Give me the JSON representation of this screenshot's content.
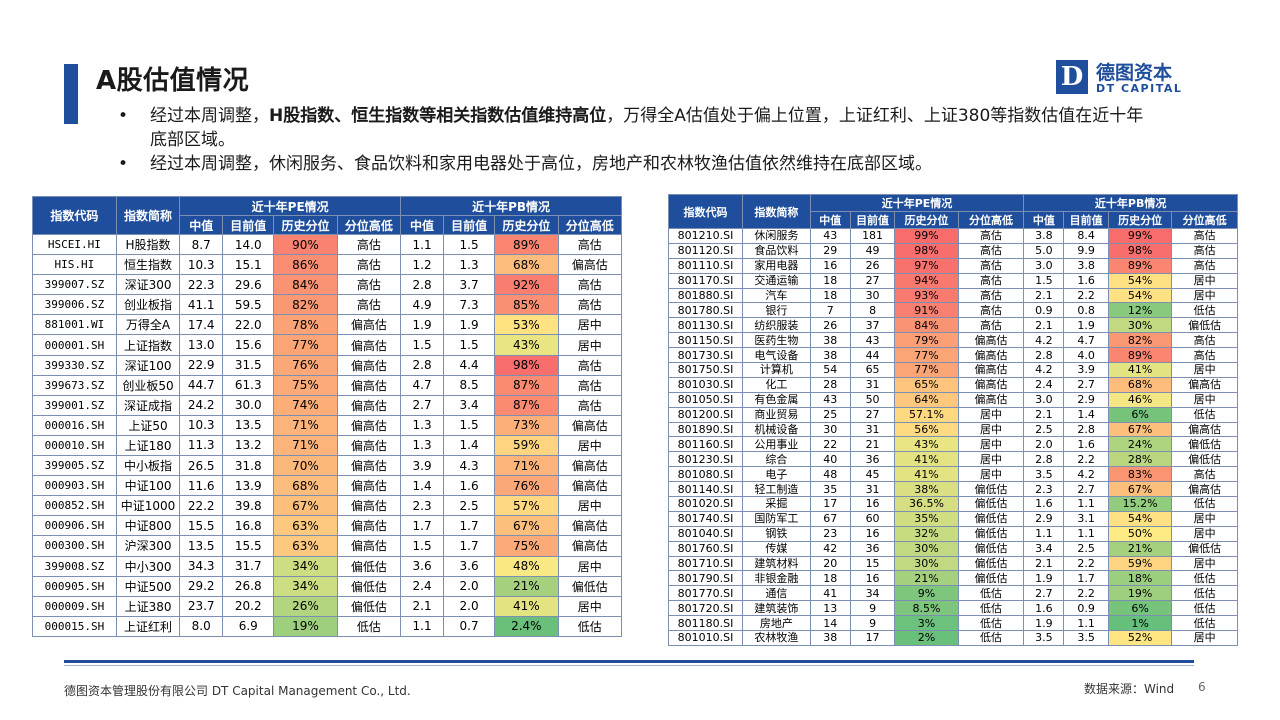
{
  "title": "A股估值情况",
  "logo": {
    "cn": "德图资本",
    "en": "DT CAPITAL",
    "mark": "D"
  },
  "bullets": [
    {
      "pre": "经过本周调整，",
      "bold": "H股指数、恒生指数等相关指数估值维持高位",
      "post": "，万得全A估值处于偏上位置，上证红利、上证380等指数估值在近十年底部区域。"
    },
    {
      "pre": "经过本周调整，休闲服务、食品饮料和家用电器处于高位，房地产和农林牧渔估值依然维持在底部区域。",
      "bold": "",
      "post": ""
    }
  ],
  "table_a": {
    "headers": {
      "code": "指数代码",
      "name": "指数简称",
      "pe_group": "近十年PE情况",
      "pb_group": "近十年PB情况",
      "median": "中值",
      "current": "目前值",
      "pct": "历史分位",
      "level": "分位高低"
    },
    "rows": [
      [
        "HSCEI.HI",
        "H股指数",
        "8.7",
        "14.0",
        "90%",
        "高估",
        "1.1",
        "1.5",
        "89%",
        "高估"
      ],
      [
        "HIS.HI",
        "恒生指数",
        "10.3",
        "15.1",
        "86%",
        "高估",
        "1.2",
        "1.3",
        "68%",
        "偏高估"
      ],
      [
        "399007.SZ",
        "深证300",
        "22.3",
        "29.6",
        "84%",
        "高估",
        "2.8",
        "3.7",
        "92%",
        "高估"
      ],
      [
        "399006.SZ",
        "创业板指",
        "41.1",
        "59.5",
        "82%",
        "高估",
        "4.9",
        "7.3",
        "85%",
        "高估"
      ],
      [
        "881001.WI",
        "万得全A",
        "17.4",
        "22.0",
        "78%",
        "偏高估",
        "1.9",
        "1.9",
        "53%",
        "居中"
      ],
      [
        "000001.SH",
        "上证指数",
        "13.0",
        "15.6",
        "77%",
        "偏高估",
        "1.5",
        "1.5",
        "43%",
        "居中"
      ],
      [
        "399330.SZ",
        "深证100",
        "22.9",
        "31.5",
        "76%",
        "偏高估",
        "2.8",
        "4.4",
        "98%",
        "高估"
      ],
      [
        "399673.SZ",
        "创业板50",
        "44.7",
        "61.3",
        "75%",
        "偏高估",
        "4.7",
        "8.5",
        "87%",
        "高估"
      ],
      [
        "399001.SZ",
        "深证成指",
        "24.2",
        "30.0",
        "74%",
        "偏高估",
        "2.7",
        "3.4",
        "87%",
        "高估"
      ],
      [
        "000016.SH",
        "上证50",
        "10.3",
        "13.5",
        "71%",
        "偏高估",
        "1.3",
        "1.5",
        "73%",
        "偏高估"
      ],
      [
        "000010.SH",
        "上证180",
        "11.3",
        "13.2",
        "71%",
        "偏高估",
        "1.3",
        "1.4",
        "59%",
        "居中"
      ],
      [
        "399005.SZ",
        "中小板指",
        "26.5",
        "31.8",
        "70%",
        "偏高估",
        "3.9",
        "4.3",
        "71%",
        "偏高估"
      ],
      [
        "000903.SH",
        "中证100",
        "11.6",
        "13.9",
        "68%",
        "偏高估",
        "1.4",
        "1.6",
        "76%",
        "偏高估"
      ],
      [
        "000852.SH",
        "中证1000",
        "22.2",
        "39.8",
        "67%",
        "偏高估",
        "2.3",
        "2.5",
        "57%",
        "居中"
      ],
      [
        "000906.SH",
        "中证800",
        "15.5",
        "16.8",
        "63%",
        "偏高估",
        "1.7",
        "1.7",
        "67%",
        "偏高估"
      ],
      [
        "000300.SH",
        "沪深300",
        "13.5",
        "15.5",
        "63%",
        "偏高估",
        "1.5",
        "1.7",
        "75%",
        "偏高估"
      ],
      [
        "399008.SZ",
        "中小300",
        "34.3",
        "31.7",
        "34%",
        "偏低估",
        "3.6",
        "3.6",
        "48%",
        "居中"
      ],
      [
        "000905.SH",
        "中证500",
        "29.2",
        "26.8",
        "34%",
        "偏低估",
        "2.4",
        "2.0",
        "21%",
        "偏低估"
      ],
      [
        "000009.SH",
        "上证380",
        "23.7",
        "20.2",
        "26%",
        "偏低估",
        "2.1",
        "2.0",
        "41%",
        "居中"
      ],
      [
        "000015.SH",
        "上证红利",
        "8.0",
        "6.9",
        "19%",
        "低估",
        "1.1",
        "0.7",
        "2.4%",
        "低估"
      ]
    ]
  },
  "table_b": {
    "headers": {
      "code": "指数代码",
      "name": "指数简称",
      "pe_group": "近十年PE情况",
      "pb_group": "近十年PB情况",
      "median": "中值",
      "current": "目前值",
      "pct": "历史分位",
      "level": "分位高低"
    },
    "rows": [
      [
        "801210.SI",
        "休闲服务",
        "43",
        "181",
        "99%",
        "高估",
        "3.8",
        "8.4",
        "99%",
        "高估"
      ],
      [
        "801120.SI",
        "食品饮料",
        "29",
        "49",
        "98%",
        "高估",
        "5.0",
        "9.9",
        "98%",
        "高估"
      ],
      [
        "801110.SI",
        "家用电器",
        "16",
        "26",
        "97%",
        "高估",
        "3.0",
        "3.8",
        "89%",
        "高估"
      ],
      [
        "801170.SI",
        "交通运输",
        "18",
        "27",
        "94%",
        "高估",
        "1.5",
        "1.6",
        "54%",
        "居中"
      ],
      [
        "801880.SI",
        "汽车",
        "18",
        "30",
        "93%",
        "高估",
        "2.1",
        "2.2",
        "54%",
        "居中"
      ],
      [
        "801780.SI",
        "银行",
        "7",
        "8",
        "91%",
        "高估",
        "0.9",
        "0.8",
        "12%",
        "低估"
      ],
      [
        "801130.SI",
        "纺织服装",
        "26",
        "37",
        "84%",
        "高估",
        "2.1",
        "1.9",
        "30%",
        "偏低估"
      ],
      [
        "801150.SI",
        "医药生物",
        "38",
        "43",
        "79%",
        "偏高估",
        "4.2",
        "4.7",
        "82%",
        "高估"
      ],
      [
        "801730.SI",
        "电气设备",
        "38",
        "44",
        "77%",
        "偏高估",
        "2.8",
        "4.0",
        "89%",
        "高估"
      ],
      [
        "801750.SI",
        "计算机",
        "54",
        "65",
        "77%",
        "偏高估",
        "4.2",
        "3.9",
        "41%",
        "居中"
      ],
      [
        "801030.SI",
        "化工",
        "28",
        "31",
        "65%",
        "偏高估",
        "2.4",
        "2.7",
        "68%",
        "偏高估"
      ],
      [
        "801050.SI",
        "有色金属",
        "43",
        "50",
        "64%",
        "偏高估",
        "3.0",
        "2.9",
        "46%",
        "居中"
      ],
      [
        "801200.SI",
        "商业贸易",
        "25",
        "27",
        "57.1%",
        "居中",
        "2.1",
        "1.4",
        "6%",
        "低估"
      ],
      [
        "801890.SI",
        "机械设备",
        "30",
        "31",
        "56%",
        "居中",
        "2.5",
        "2.8",
        "67%",
        "偏高估"
      ],
      [
        "801160.SI",
        "公用事业",
        "22",
        "21",
        "43%",
        "居中",
        "2.0",
        "1.6",
        "24%",
        "偏低估"
      ],
      [
        "801230.SI",
        "综合",
        "40",
        "36",
        "41%",
        "居中",
        "2.8",
        "2.2",
        "28%",
        "偏低估"
      ],
      [
        "801080.SI",
        "电子",
        "48",
        "45",
        "41%",
        "居中",
        "3.5",
        "4.2",
        "83%",
        "高估"
      ],
      [
        "801140.SI",
        "轻工制造",
        "35",
        "31",
        "38%",
        "偏低估",
        "2.3",
        "2.7",
        "67%",
        "偏高估"
      ],
      [
        "801020.SI",
        "采掘",
        "17",
        "16",
        "36.5%",
        "偏低估",
        "1.6",
        "1.1",
        "15.2%",
        "低估"
      ],
      [
        "801740.SI",
        "国防军工",
        "67",
        "60",
        "35%",
        "偏低估",
        "2.9",
        "3.1",
        "54%",
        "居中"
      ],
      [
        "801040.SI",
        "钢铁",
        "23",
        "16",
        "32%",
        "偏低估",
        "1.1",
        "1.1",
        "50%",
        "居中"
      ],
      [
        "801760.SI",
        "传媒",
        "42",
        "36",
        "30%",
        "偏低估",
        "3.4",
        "2.5",
        "21%",
        "偏低估"
      ],
      [
        "801710.SI",
        "建筑材料",
        "20",
        "15",
        "30%",
        "偏低估",
        "2.1",
        "2.2",
        "59%",
        "居中"
      ],
      [
        "801790.SI",
        "非银金融",
        "18",
        "16",
        "21%",
        "偏低估",
        "1.9",
        "1.7",
        "18%",
        "低估"
      ],
      [
        "801770.SI",
        "通信",
        "41",
        "34",
        "9%",
        "低估",
        "2.7",
        "2.2",
        "19%",
        "低估"
      ],
      [
        "801720.SI",
        "建筑装饰",
        "13",
        "9",
        "8.5%",
        "低估",
        "1.6",
        "0.9",
        "6%",
        "低估"
      ],
      [
        "801180.SI",
        "房地产",
        "14",
        "9",
        "3%",
        "低估",
        "1.9",
        "1.1",
        "1%",
        "低估"
      ],
      [
        "801010.SI",
        "农林牧渔",
        "38",
        "17",
        "2%",
        "低估",
        "3.5",
        "3.5",
        "52%",
        "居中"
      ]
    ]
  },
  "footer": {
    "company": "德图资本管理股份有限公司  DT Capital Management  Co., Ltd.",
    "source": "数据来源：Wind",
    "page": "6"
  },
  "colors": {
    "brand": "#1f4e9c",
    "high": "#f8696b",
    "mid": "#ffeb84",
    "low": "#63be7b"
  }
}
